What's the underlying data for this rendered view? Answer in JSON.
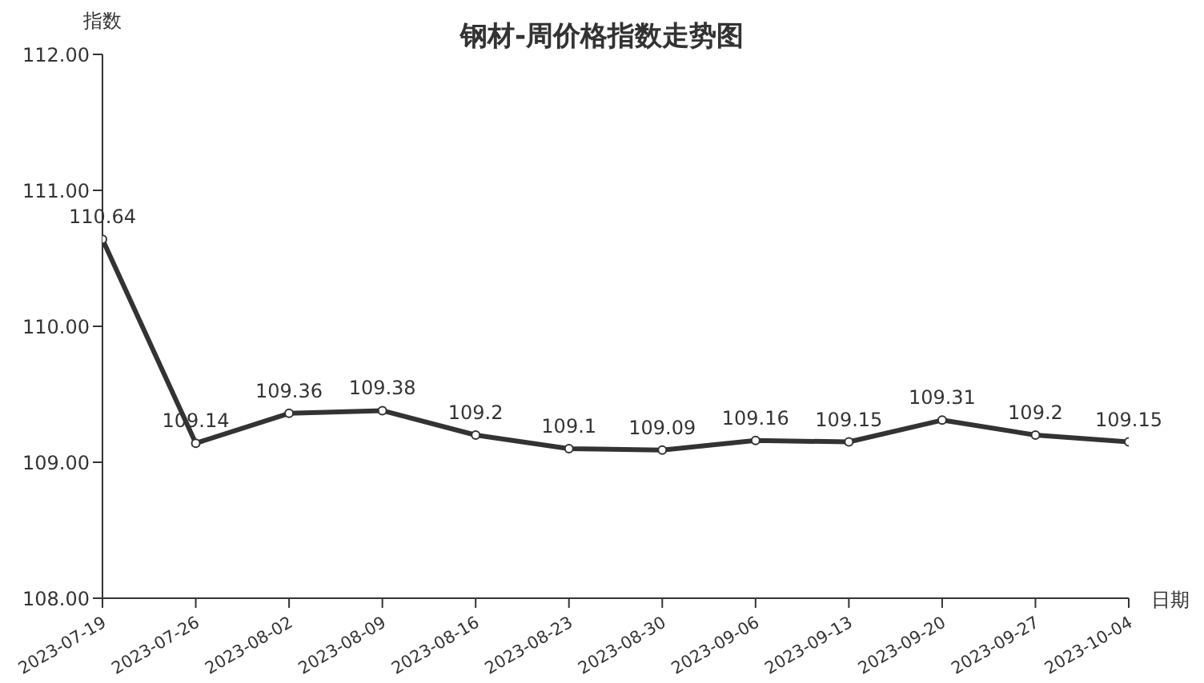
{
  "chart_data": {
    "type": "line",
    "title": "钢材-周价格指数走势图",
    "xlabel": "日期",
    "ylabel": "指数",
    "categories": [
      "2023-07-19",
      "2023-07-26",
      "2023-08-02",
      "2023-08-09",
      "2023-08-16",
      "2023-08-23",
      "2023-08-30",
      "2023-09-06",
      "2023-09-13",
      "2023-09-20",
      "2023-09-27",
      "2023-10-04"
    ],
    "series": [
      {
        "color": "#333333",
        "values": [
          110.64,
          109.14,
          109.36,
          109.38,
          109.2,
          109.1,
          109.09,
          109.16,
          109.15,
          109.31,
          109.2,
          109.15
        ]
      }
    ],
    "ylim": [
      108,
      112
    ],
    "yticks": [
      {
        "value": 108,
        "label": "108.00"
      },
      {
        "value": 109,
        "label": "109.00"
      },
      {
        "value": 110,
        "label": "110.00"
      },
      {
        "value": 111,
        "label": "111.00"
      },
      {
        "value": 112,
        "label": "112.00"
      }
    ],
    "grid": false,
    "marker": "circle",
    "line_style": "solid",
    "data_labels": true
  }
}
